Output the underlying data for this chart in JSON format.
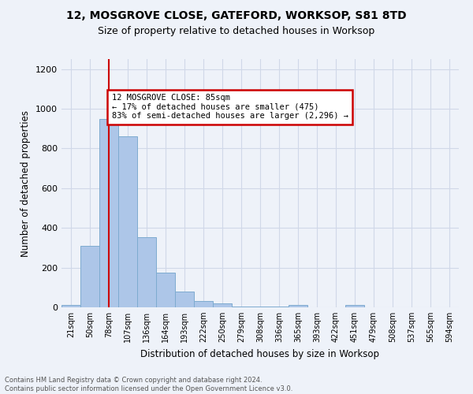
{
  "title1": "12, MOSGROVE CLOSE, GATEFORD, WORKSOP, S81 8TD",
  "title2": "Size of property relative to detached houses in Worksop",
  "xlabel": "Distribution of detached houses by size in Worksop",
  "ylabel": "Number of detached properties",
  "bin_labels": [
    "21sqm",
    "50sqm",
    "78sqm",
    "107sqm",
    "136sqm",
    "164sqm",
    "193sqm",
    "222sqm",
    "250sqm",
    "279sqm",
    "308sqm",
    "336sqm",
    "365sqm",
    "393sqm",
    "422sqm",
    "451sqm",
    "479sqm",
    "508sqm",
    "537sqm",
    "565sqm",
    "594sqm"
  ],
  "bar_heights": [
    10,
    310,
    950,
    860,
    355,
    175,
    80,
    30,
    20,
    5,
    5,
    5,
    10,
    0,
    0,
    12,
    0,
    0,
    0,
    0,
    0
  ],
  "bar_color": "#adc6e8",
  "bar_edge_color": "#7eabd0",
  "grid_color": "#d0d8e8",
  "bg_color": "#eef2f9",
  "vline_x": 2,
  "vline_color": "#cc0000",
  "annotation_text": "12 MOSGROVE CLOSE: 85sqm\n← 17% of detached houses are smaller (475)\n83% of semi-detached houses are larger (2,296) →",
  "annotation_box_color": "#ffffff",
  "annotation_box_edge": "#cc0000",
  "ylim": [
    0,
    1250
  ],
  "yticks": [
    0,
    200,
    400,
    600,
    800,
    1000,
    1200
  ],
  "footer": "Contains HM Land Registry data © Crown copyright and database right 2024.\nContains public sector information licensed under the Open Government Licence v3.0."
}
